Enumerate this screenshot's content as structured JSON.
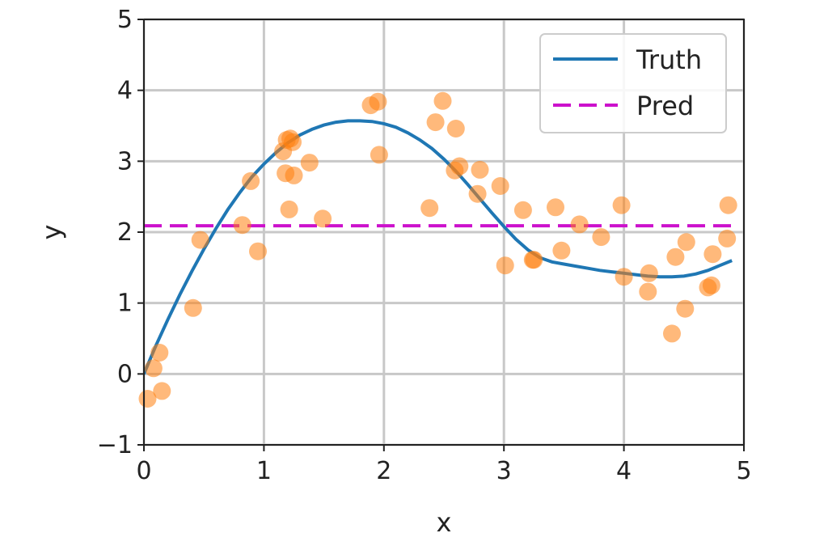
{
  "chart_data": {
    "type": "scatter",
    "title": "",
    "xlabel": "x",
    "ylabel": "y",
    "xlim": [
      0,
      5
    ],
    "ylim": [
      -1,
      5
    ],
    "xticks": [
      0,
      1,
      2,
      3,
      4,
      5
    ],
    "yticks": [
      -1,
      0,
      1,
      2,
      3,
      4,
      5
    ],
    "xtick_labels": [
      "0",
      "1",
      "2",
      "3",
      "4",
      "5"
    ],
    "ytick_labels": [
      "−1",
      "0",
      "1",
      "2",
      "3",
      "4",
      "5"
    ],
    "grid": true,
    "legend_position": "top-right",
    "series": [
      {
        "name": "Truth",
        "kind": "line",
        "color": "#1f77b4",
        "dash": "solid",
        "x": [
          0.0,
          0.1,
          0.2,
          0.3,
          0.4,
          0.5,
          0.6,
          0.7,
          0.8,
          0.9,
          1.0,
          1.1,
          1.2,
          1.3,
          1.4,
          1.5,
          1.6,
          1.7,
          1.8,
          1.9,
          2.0,
          2.1,
          2.2,
          2.3,
          2.4,
          2.5,
          2.6,
          2.7,
          2.8,
          2.9,
          3.0,
          3.1,
          3.2,
          3.3,
          3.4,
          3.5,
          3.6,
          3.7,
          3.8,
          3.9,
          4.0,
          4.1,
          4.2,
          4.3,
          4.4,
          4.5,
          4.6,
          4.7,
          4.8,
          4.9
        ],
        "y": [
          0.0,
          0.4,
          0.77,
          1.12,
          1.45,
          1.76,
          2.05,
          2.32,
          2.56,
          2.78,
          2.96,
          3.12,
          3.26,
          3.37,
          3.45,
          3.51,
          3.55,
          3.57,
          3.57,
          3.56,
          3.53,
          3.48,
          3.4,
          3.3,
          3.18,
          3.03,
          2.86,
          2.67,
          2.47,
          2.27,
          2.08,
          1.9,
          1.75,
          1.64,
          1.58,
          1.55,
          1.52,
          1.49,
          1.46,
          1.44,
          1.42,
          1.4,
          1.38,
          1.37,
          1.37,
          1.38,
          1.41,
          1.46,
          1.53,
          1.6
        ]
      },
      {
        "name": "Pred",
        "kind": "line",
        "color": "#cc11cc",
        "dash": "dashed",
        "x": [
          0.0,
          4.9
        ],
        "y": [
          2.09,
          2.09
        ]
      },
      {
        "name": "",
        "kind": "scatter",
        "color": "#ff7f0e",
        "x": [
          0.03,
          0.08,
          0.13,
          0.15,
          0.41,
          0.47,
          0.82,
          0.89,
          0.95,
          1.16,
          1.18,
          1.19,
          1.21,
          1.22,
          1.24,
          1.25,
          1.38,
          1.49,
          1.89,
          1.95,
          1.96,
          2.38,
          2.43,
          2.49,
          2.59,
          2.6,
          2.63,
          2.78,
          2.8,
          2.97,
          3.01,
          3.16,
          3.24,
          3.25,
          3.43,
          3.48,
          3.63,
          3.81,
          3.98,
          4.0,
          4.2,
          4.21,
          4.4,
          4.43,
          4.51,
          4.52,
          4.7,
          4.73,
          4.74,
          4.86,
          4.87
        ],
        "y": [
          -0.35,
          0.08,
          0.3,
          -0.24,
          0.93,
          1.89,
          2.1,
          2.72,
          1.73,
          3.14,
          2.83,
          3.3,
          2.32,
          3.32,
          3.27,
          2.8,
          2.98,
          2.19,
          3.79,
          3.84,
          3.09,
          2.34,
          3.55,
          3.85,
          2.87,
          3.46,
          2.93,
          2.54,
          2.88,
          2.65,
          1.53,
          2.31,
          1.61,
          1.61,
          2.35,
          1.74,
          2.11,
          1.93,
          2.38,
          1.37,
          1.16,
          1.42,
          0.57,
          1.65,
          0.92,
          1.86,
          1.22,
          1.25,
          1.69,
          1.91,
          2.38
        ]
      }
    ]
  }
}
